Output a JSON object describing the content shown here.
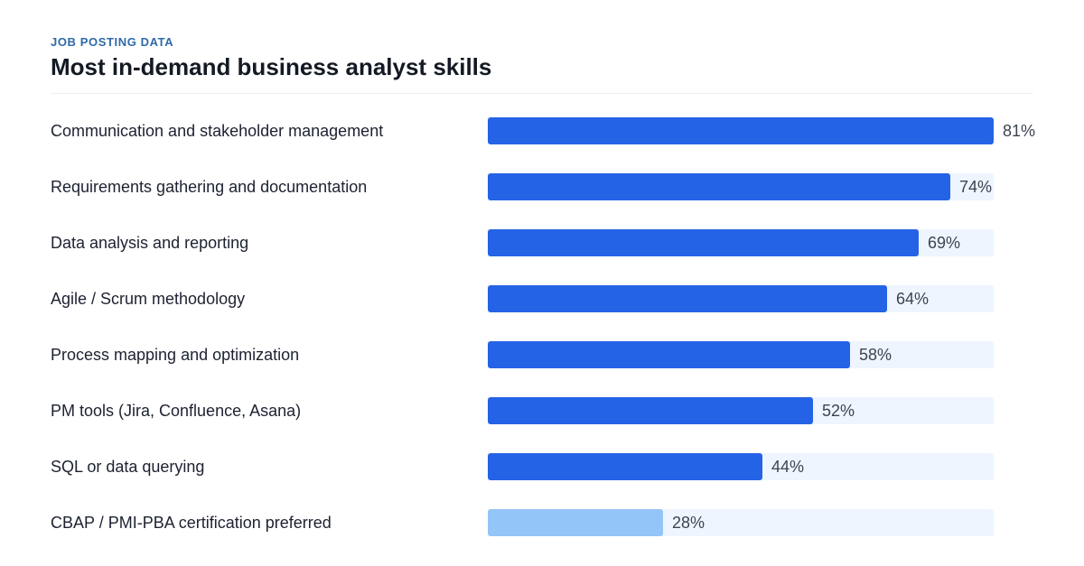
{
  "header": {
    "eyebrow": "JOB POSTING DATA",
    "title": "Most in-demand business analyst skills"
  },
  "colors": {
    "primary_bar": "#2563e6",
    "secondary_bar": "#93c5f8",
    "track": "#eef5fe"
  },
  "chart_data": {
    "type": "bar",
    "orientation": "horizontal",
    "title": "Most in-demand business analyst skills",
    "categories": [
      "Communication and stakeholder management",
      "Requirements gathering and documentation",
      "Data analysis and reporting",
      "Agile / Scrum methodology",
      "Process mapping and optimization",
      "PM tools (Jira, Confluence, Asana)",
      "SQL or data querying",
      "CBAP / PMI-PBA certification preferred"
    ],
    "values": [
      81,
      74,
      69,
      64,
      58,
      52,
      44,
      28
    ],
    "value_labels": [
      "81%",
      "74%",
      "69%",
      "64%",
      "58%",
      "52%",
      "44%",
      "28%"
    ],
    "bar_colors": [
      "#2563e6",
      "#2563e6",
      "#2563e6",
      "#2563e6",
      "#2563e6",
      "#2563e6",
      "#2563e6",
      "#93c5f8"
    ],
    "xlim": [
      0,
      81
    ],
    "grid": false,
    "legend": "none"
  }
}
